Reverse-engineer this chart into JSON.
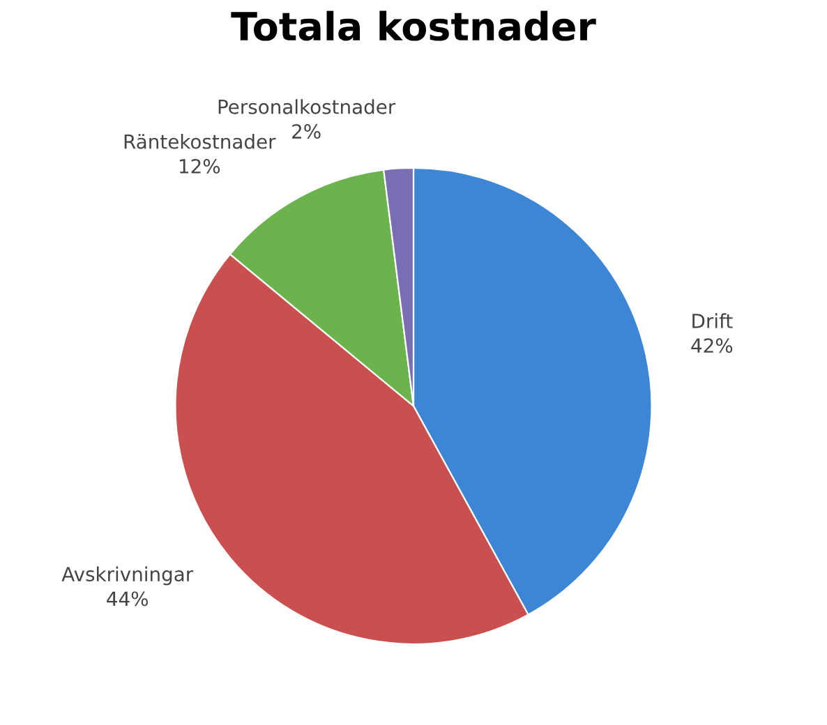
{
  "chart_data": {
    "type": "pie",
    "title": "Totala kostnader",
    "categories": [
      "Drift",
      "Avskrivningar",
      "Räntekostnader",
      "Personalkostnader"
    ],
    "values": [
      42,
      44,
      12,
      2
    ],
    "colors": [
      "#3d86d6",
      "#c9504f",
      "#6ab34d",
      "#7a6db3"
    ],
    "value_labels": [
      "42%",
      "44%",
      "12%",
      "2%"
    ]
  }
}
